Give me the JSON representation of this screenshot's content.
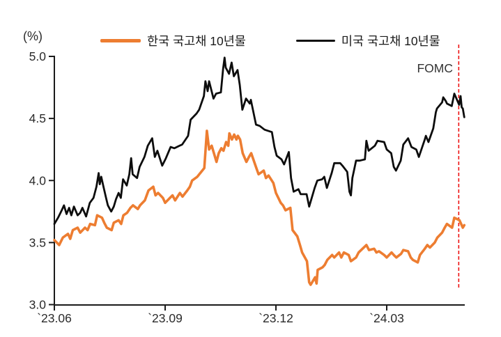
{
  "axis": {
    "y_unit_label": "(%)"
  },
  "legend": [
    {
      "label": "한국 국고채 10년물",
      "color": "#ED7D31"
    },
    {
      "label": "미국 국고채 10년물",
      "color": "#0d0d0d"
    }
  ],
  "chart_data": {
    "type": "line",
    "title": "",
    "ylabel": "(%)",
    "xlabel": "",
    "grid": false,
    "legend_position": "top",
    "ylim": [
      3.0,
      5.0
    ],
    "yticks": [
      5.0,
      4.5,
      4.0,
      3.5,
      3.0
    ],
    "x_unit": "months since 2023-06-01",
    "x_domain": [
      0,
      11.2
    ],
    "xticks": [
      {
        "t": 0,
        "label": "`23.06"
      },
      {
        "t": 3,
        "label": "`23.09"
      },
      {
        "t": 6,
        "label": "`23.12"
      },
      {
        "t": 9,
        "label": "`24.03"
      }
    ],
    "axis_color": "#1a1a1a",
    "text_color": "#2b2b2b",
    "annotations": [
      {
        "type": "vline",
        "t": 10.95,
        "label": "FOMC",
        "color": "#ee1111",
        "style": "dashed"
      }
    ],
    "series": [
      {
        "key": "korea",
        "name": "한국 국고채 10년물",
        "color": "#ED7D31",
        "width": 3.6,
        "points": [
          [
            0.0,
            3.52
          ],
          [
            0.13,
            3.48
          ],
          [
            0.23,
            3.54
          ],
          [
            0.37,
            3.57
          ],
          [
            0.43,
            3.53
          ],
          [
            0.5,
            3.6
          ],
          [
            0.63,
            3.62
          ],
          [
            0.7,
            3.58
          ],
          [
            0.83,
            3.62
          ],
          [
            0.9,
            3.6
          ],
          [
            0.97,
            3.65
          ],
          [
            1.1,
            3.64
          ],
          [
            1.16,
            3.72
          ],
          [
            1.29,
            3.7
          ],
          [
            1.35,
            3.66
          ],
          [
            1.42,
            3.62
          ],
          [
            1.55,
            3.6
          ],
          [
            1.61,
            3.66
          ],
          [
            1.74,
            3.68
          ],
          [
            1.81,
            3.65
          ],
          [
            1.87,
            3.72
          ],
          [
            1.97,
            3.74
          ],
          [
            2.06,
            3.78
          ],
          [
            2.13,
            3.8
          ],
          [
            2.26,
            3.77
          ],
          [
            2.32,
            3.8
          ],
          [
            2.45,
            3.84
          ],
          [
            2.55,
            3.92
          ],
          [
            2.68,
            3.95
          ],
          [
            2.74,
            3.88
          ],
          [
            2.81,
            3.9
          ],
          [
            2.94,
            3.86
          ],
          [
            3.0,
            3.82
          ],
          [
            3.13,
            3.86
          ],
          [
            3.2,
            3.88
          ],
          [
            3.27,
            3.84
          ],
          [
            3.4,
            3.9
          ],
          [
            3.47,
            3.87
          ],
          [
            3.6,
            3.92
          ],
          [
            3.67,
            3.95
          ],
          [
            3.73,
            4.0
          ],
          [
            3.87,
            4.03
          ],
          [
            4.06,
            4.1
          ],
          [
            4.13,
            4.4
          ],
          [
            4.19,
            4.25
          ],
          [
            4.26,
            4.28
          ],
          [
            4.32,
            4.22
          ],
          [
            4.39,
            4.15
          ],
          [
            4.45,
            4.22
          ],
          [
            4.52,
            4.26
          ],
          [
            4.58,
            4.24
          ],
          [
            4.65,
            4.31
          ],
          [
            4.71,
            4.28
          ],
          [
            4.74,
            4.38
          ],
          [
            4.81,
            4.33
          ],
          [
            4.87,
            4.37
          ],
          [
            4.93,
            4.33
          ],
          [
            4.97,
            4.36
          ],
          [
            5.03,
            4.33
          ],
          [
            5.1,
            4.22
          ],
          [
            5.2,
            4.15
          ],
          [
            5.27,
            4.19
          ],
          [
            5.33,
            4.22
          ],
          [
            5.47,
            4.1
          ],
          [
            5.53,
            4.05
          ],
          [
            5.67,
            4.08
          ],
          [
            5.73,
            4.02
          ],
          [
            5.8,
            4.04
          ],
          [
            5.93,
            3.98
          ],
          [
            6.0,
            3.9
          ],
          [
            6.13,
            3.82
          ],
          [
            6.19,
            3.8
          ],
          [
            6.26,
            3.76
          ],
          [
            6.39,
            3.78
          ],
          [
            6.45,
            3.6
          ],
          [
            6.58,
            3.55
          ],
          [
            6.65,
            3.48
          ],
          [
            6.71,
            3.42
          ],
          [
            6.84,
            3.35
          ],
          [
            6.9,
            3.18
          ],
          [
            6.94,
            3.16
          ],
          [
            7.06,
            3.22
          ],
          [
            7.1,
            3.17
          ],
          [
            7.13,
            3.28
          ],
          [
            7.26,
            3.3
          ],
          [
            7.32,
            3.32
          ],
          [
            7.39,
            3.36
          ],
          [
            7.52,
            3.4
          ],
          [
            7.58,
            3.38
          ],
          [
            7.71,
            3.42
          ],
          [
            7.77,
            3.38
          ],
          [
            7.84,
            3.42
          ],
          [
            7.97,
            3.4
          ],
          [
            8.03,
            3.35
          ],
          [
            8.17,
            3.38
          ],
          [
            8.24,
            3.42
          ],
          [
            8.45,
            3.48
          ],
          [
            8.52,
            3.44
          ],
          [
            8.66,
            3.45
          ],
          [
            8.72,
            3.42
          ],
          [
            8.79,
            3.43
          ],
          [
            8.93,
            3.4
          ],
          [
            9.0,
            3.38
          ],
          [
            9.13,
            3.42
          ],
          [
            9.19,
            3.4
          ],
          [
            9.26,
            3.38
          ],
          [
            9.39,
            3.41
          ],
          [
            9.45,
            3.44
          ],
          [
            9.58,
            3.43
          ],
          [
            9.65,
            3.38
          ],
          [
            9.71,
            3.36
          ],
          [
            9.84,
            3.34
          ],
          [
            9.9,
            3.4
          ],
          [
            10.03,
            3.45
          ],
          [
            10.1,
            3.48
          ],
          [
            10.17,
            3.46
          ],
          [
            10.3,
            3.5
          ],
          [
            10.37,
            3.54
          ],
          [
            10.5,
            3.58
          ],
          [
            10.57,
            3.62
          ],
          [
            10.63,
            3.65
          ],
          [
            10.77,
            3.62
          ],
          [
            10.83,
            3.7
          ],
          [
            10.97,
            3.68
          ],
          [
            11.0,
            3.66
          ],
          [
            11.06,
            3.62
          ],
          [
            11.1,
            3.64
          ]
        ]
      },
      {
        "key": "us",
        "name": "미국 국고채 10년물",
        "color": "#0d0d0d",
        "width": 2.8,
        "points": [
          [
            0.0,
            3.65
          ],
          [
            0.1,
            3.7
          ],
          [
            0.2,
            3.76
          ],
          [
            0.26,
            3.8
          ],
          [
            0.33,
            3.73
          ],
          [
            0.4,
            3.78
          ],
          [
            0.46,
            3.72
          ],
          [
            0.53,
            3.79
          ],
          [
            0.63,
            3.72
          ],
          [
            0.7,
            3.74
          ],
          [
            0.76,
            3.78
          ],
          [
            0.86,
            3.71
          ],
          [
            0.96,
            3.82
          ],
          [
            1.06,
            3.86
          ],
          [
            1.14,
            3.95
          ],
          [
            1.2,
            4.06
          ],
          [
            1.23,
            3.97
          ],
          [
            1.27,
            4.03
          ],
          [
            1.33,
            3.95
          ],
          [
            1.4,
            3.86
          ],
          [
            1.45,
            3.8
          ],
          [
            1.54,
            3.75
          ],
          [
            1.61,
            3.79
          ],
          [
            1.67,
            3.85
          ],
          [
            1.74,
            3.9
          ],
          [
            1.8,
            3.86
          ],
          [
            1.86,
            4.01
          ],
          [
            1.96,
            3.96
          ],
          [
            2.03,
            4.05
          ],
          [
            2.08,
            4.18
          ],
          [
            2.12,
            4.05
          ],
          [
            2.24,
            4.02
          ],
          [
            2.31,
            4.11
          ],
          [
            2.44,
            4.19
          ],
          [
            2.53,
            4.28
          ],
          [
            2.65,
            4.34
          ],
          [
            2.72,
            4.19
          ],
          [
            2.79,
            4.24
          ],
          [
            2.92,
            4.12
          ],
          [
            3.02,
            4.18
          ],
          [
            3.15,
            4.27
          ],
          [
            3.25,
            4.26
          ],
          [
            3.39,
            4.28
          ],
          [
            3.46,
            4.29
          ],
          [
            3.62,
            4.36
          ],
          [
            3.69,
            4.49
          ],
          [
            3.85,
            4.54
          ],
          [
            3.92,
            4.57
          ],
          [
            4.05,
            4.68
          ],
          [
            4.09,
            4.8
          ],
          [
            4.15,
            4.72
          ],
          [
            4.19,
            4.8
          ],
          [
            4.31,
            4.66
          ],
          [
            4.38,
            4.7
          ],
          [
            4.51,
            4.71
          ],
          [
            4.57,
            4.9
          ],
          [
            4.61,
            4.99
          ],
          [
            4.64,
            4.91
          ],
          [
            4.73,
            4.86
          ],
          [
            4.8,
            4.95
          ],
          [
            4.86,
            4.84
          ],
          [
            4.96,
            4.89
          ],
          [
            5.02,
            4.77
          ],
          [
            5.09,
            4.57
          ],
          [
            5.19,
            4.66
          ],
          [
            5.29,
            4.62
          ],
          [
            5.32,
            4.65
          ],
          [
            5.46,
            4.45
          ],
          [
            5.56,
            4.44
          ],
          [
            5.69,
            4.41
          ],
          [
            5.89,
            4.39
          ],
          [
            5.96,
            4.27
          ],
          [
            6.02,
            4.2
          ],
          [
            6.15,
            4.17
          ],
          [
            6.22,
            4.13
          ],
          [
            6.35,
            4.23
          ],
          [
            6.41,
            4.02
          ],
          [
            6.48,
            3.91
          ],
          [
            6.61,
            3.93
          ],
          [
            6.67,
            3.89
          ],
          [
            6.83,
            3.89
          ],
          [
            6.9,
            3.79
          ],
          [
            7.05,
            3.94
          ],
          [
            7.12,
            4.0
          ],
          [
            7.25,
            4.01
          ],
          [
            7.31,
            4.03
          ],
          [
            7.38,
            3.94
          ],
          [
            7.51,
            4.06
          ],
          [
            7.58,
            4.14
          ],
          [
            7.74,
            4.14
          ],
          [
            7.8,
            4.12
          ],
          [
            7.93,
            4.07
          ],
          [
            7.99,
            3.91
          ],
          [
            8.03,
            3.88
          ],
          [
            8.07,
            4.02
          ],
          [
            8.17,
            4.16
          ],
          [
            8.27,
            4.16
          ],
          [
            8.41,
            4.17
          ],
          [
            8.45,
            4.32
          ],
          [
            8.51,
            4.24
          ],
          [
            8.68,
            4.28
          ],
          [
            8.75,
            4.32
          ],
          [
            8.93,
            4.31
          ],
          [
            9.0,
            4.25
          ],
          [
            9.12,
            4.22
          ],
          [
            9.19,
            4.11
          ],
          [
            9.25,
            4.08
          ],
          [
            9.38,
            4.16
          ],
          [
            9.45,
            4.29
          ],
          [
            9.58,
            4.34
          ],
          [
            9.67,
            4.27
          ],
          [
            9.8,
            4.25
          ],
          [
            9.87,
            4.19
          ],
          [
            10.03,
            4.33
          ],
          [
            10.06,
            4.36
          ],
          [
            10.13,
            4.31
          ],
          [
            10.26,
            4.42
          ],
          [
            10.33,
            4.55
          ],
          [
            10.36,
            4.58
          ],
          [
            10.5,
            4.63
          ],
          [
            10.53,
            4.67
          ],
          [
            10.6,
            4.64
          ],
          [
            10.63,
            4.62
          ],
          [
            10.76,
            4.6
          ],
          [
            10.83,
            4.7
          ],
          [
            10.96,
            4.61
          ],
          [
            11.0,
            4.68
          ],
          [
            11.03,
            4.59
          ],
          [
            11.06,
            4.58
          ],
          [
            11.1,
            4.51
          ]
        ]
      }
    ]
  }
}
